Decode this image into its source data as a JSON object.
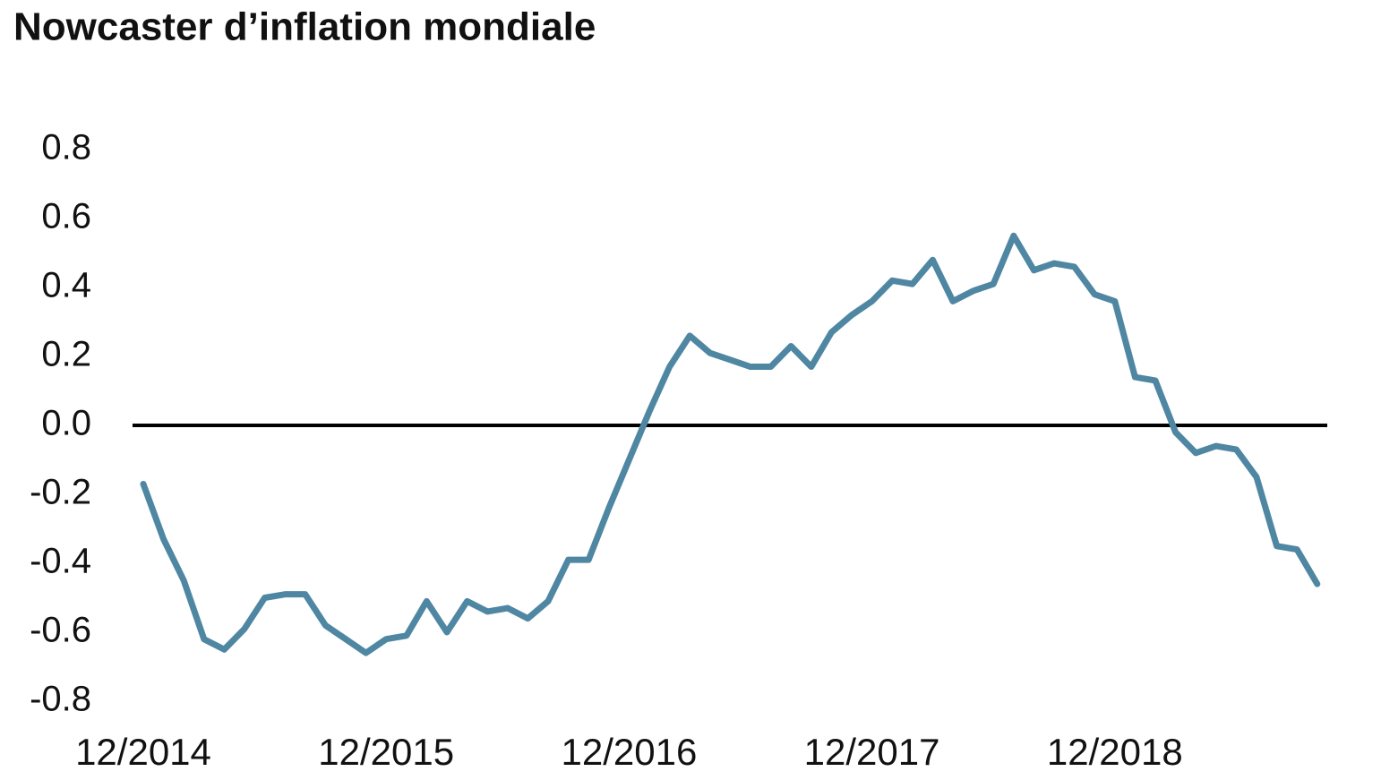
{
  "chart_data": {
    "type": "line",
    "title": "Nowcaster d’inflation mondiale",
    "categories": [
      "12/2014",
      null,
      null,
      null,
      null,
      null,
      null,
      null,
      null,
      null,
      null,
      null,
      "12/2015",
      null,
      null,
      null,
      null,
      null,
      null,
      null,
      null,
      null,
      null,
      null,
      "12/2016",
      null,
      null,
      null,
      null,
      null,
      null,
      null,
      null,
      null,
      null,
      null,
      "12/2017",
      null,
      null,
      null,
      null,
      null,
      null,
      null,
      null,
      null,
      null,
      null,
      "12/2018",
      null,
      null,
      null,
      null,
      null,
      null,
      null,
      null,
      null,
      null
    ],
    "series": [
      {
        "color": "#4f87a3",
        "values": [
          -0.17,
          -0.33,
          -0.45,
          -0.62,
          -0.65,
          -0.59,
          -0.5,
          -0.49,
          -0.49,
          -0.58,
          -0.62,
          -0.66,
          -0.62,
          -0.61,
          -0.51,
          -0.6,
          -0.51,
          -0.54,
          -0.53,
          -0.56,
          -0.51,
          -0.39,
          -0.39,
          -0.24,
          -0.1,
          0.04,
          0.17,
          0.26,
          0.21,
          0.19,
          0.17,
          0.17,
          0.23,
          0.17,
          0.27,
          0.32,
          0.36,
          0.42,
          0.41,
          0.48,
          0.36,
          0.39,
          0.41,
          0.55,
          0.45,
          0.47,
          0.46,
          0.38,
          0.36,
          0.14,
          0.13,
          -0.02,
          -0.08,
          -0.06,
          -0.07,
          -0.15,
          -0.35,
          -0.36,
          -0.46
        ]
      }
    ],
    "ylim": [
      -0.8,
      0.8
    ],
    "yticks": [
      -0.8,
      -0.6,
      -0.4,
      -0.2,
      {
        "value": 0,
        "label": "0.0"
      },
      0.2,
      0.4,
      0.6,
      0.8
    ],
    "grid": false
  }
}
